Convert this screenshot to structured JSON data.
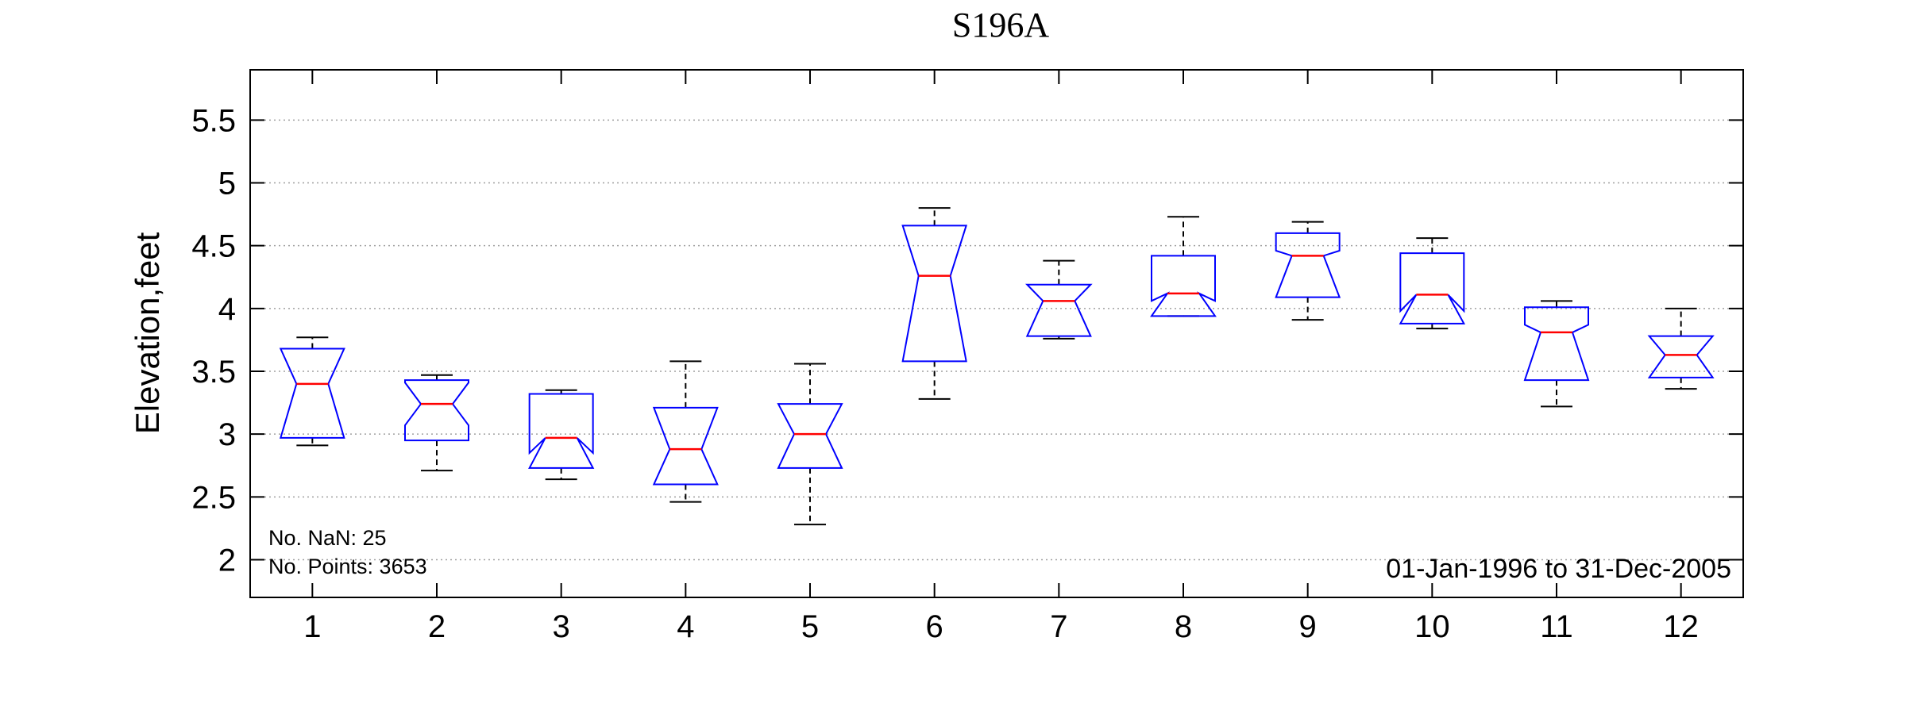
{
  "chart_data": {
    "type": "box",
    "title": "S196A",
    "ylabel": "Elevation,feet",
    "xlabel": "",
    "ylim": [
      1.7,
      5.9
    ],
    "yticks": [
      "2",
      "2.5",
      "3",
      "3.5",
      "4",
      "4.5",
      "5",
      "5.5"
    ],
    "grid": "horizontal dotted",
    "notched": true,
    "colors": {
      "box": "#0000ff",
      "median": "#ff0000",
      "whisker": "#000000",
      "grid": "#a0a0a0"
    },
    "categories": [
      "1",
      "2",
      "3",
      "4",
      "5",
      "6",
      "7",
      "8",
      "9",
      "10",
      "11",
      "12"
    ],
    "boxes": [
      {
        "min": 2.91,
        "q1": 2.97,
        "median": 3.4,
        "q3": 3.68,
        "max": 3.77,
        "notch_low": 2.97,
        "notch_high": 3.68
      },
      {
        "min": 2.71,
        "q1": 2.95,
        "median": 3.24,
        "q3": 3.43,
        "max": 3.47,
        "notch_low": 3.07,
        "notch_high": 3.41
      },
      {
        "min": 2.64,
        "q1": 2.73,
        "median": 2.97,
        "q3": 3.32,
        "max": 3.35,
        "notch_low": 2.73,
        "notch_high": 2.85
      },
      {
        "min": 2.46,
        "q1": 2.6,
        "median": 2.88,
        "q3": 3.21,
        "max": 3.58,
        "notch_low": 2.6,
        "notch_high": 3.21
      },
      {
        "min": 2.28,
        "q1": 2.73,
        "median": 3.0,
        "q3": 3.24,
        "max": 3.56,
        "notch_low": 2.73,
        "notch_high": 3.24
      },
      {
        "min": 3.28,
        "q1": 3.58,
        "median": 4.26,
        "q3": 4.66,
        "max": 4.8,
        "notch_low": 3.58,
        "notch_high": 4.66
      },
      {
        "min": 3.76,
        "q1": 3.78,
        "median": 4.06,
        "q3": 4.19,
        "max": 4.38,
        "notch_low": 3.78,
        "notch_high": 4.19
      },
      {
        "min": 3.94,
        "q1": 3.94,
        "median": 4.12,
        "q3": 4.42,
        "max": 4.73,
        "notch_low": 3.94,
        "notch_high": 4.06
      },
      {
        "min": 3.91,
        "q1": 4.09,
        "median": 4.42,
        "q3": 4.6,
        "max": 4.69,
        "notch_low": 4.09,
        "notch_high": 4.46
      },
      {
        "min": 3.84,
        "q1": 3.88,
        "median": 4.11,
        "q3": 4.44,
        "max": 4.56,
        "notch_low": 3.88,
        "notch_high": 3.98
      },
      {
        "min": 3.22,
        "q1": 3.43,
        "median": 3.81,
        "q3": 4.01,
        "max": 4.06,
        "notch_low": 3.43,
        "notch_high": 3.87
      },
      {
        "min": 3.36,
        "q1": 3.45,
        "median": 3.63,
        "q3": 3.78,
        "max": 4.0,
        "notch_low": 3.45,
        "notch_high": 3.78
      }
    ],
    "annotations": {
      "nan": "No. NaN: 25",
      "points": "No. Points: 3653",
      "range": "01-Jan-1996 to 31-Dec-2005"
    }
  }
}
